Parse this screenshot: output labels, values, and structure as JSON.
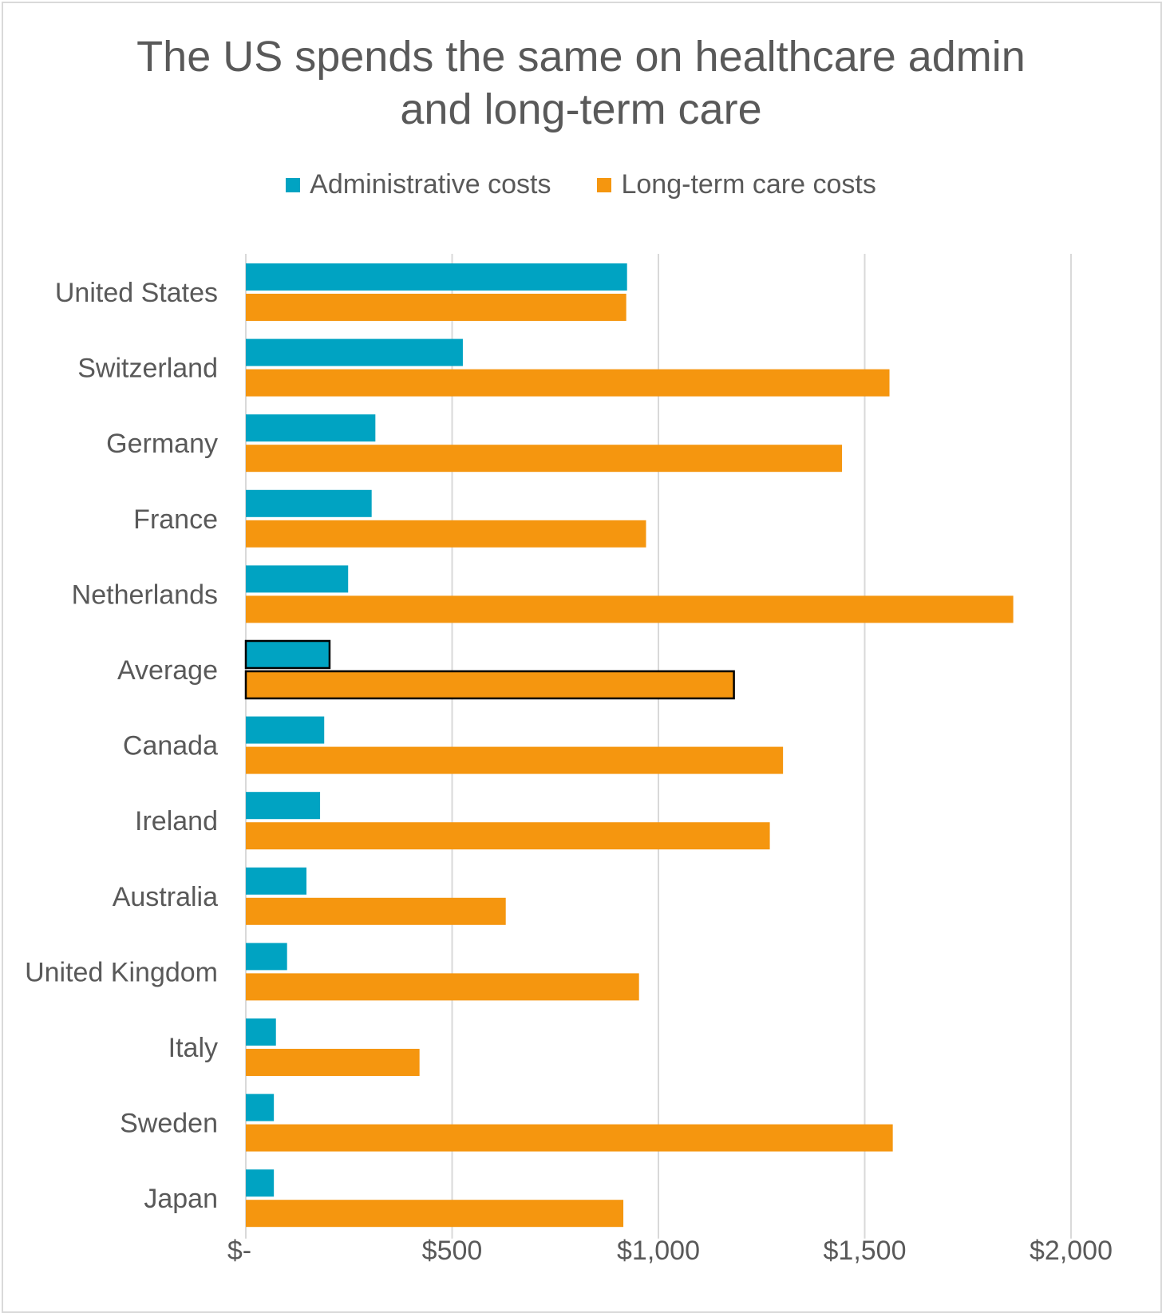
{
  "chart_data": {
    "type": "bar",
    "orientation": "horizontal",
    "title_lines": [
      "The US spends the same on healthcare admin",
      "and long-term care"
    ],
    "categories": [
      "United States",
      "Switzerland",
      "Germany",
      "France",
      "Netherlands",
      "Average",
      "Canada",
      "Ireland",
      "Australia",
      "United Kingdom",
      "Italy",
      "Sweden",
      "Japan"
    ],
    "series": [
      {
        "name": "Administrative costs",
        "color": "#00a3c2",
        "values": [
          924,
          526,
          314,
          305,
          248,
          203,
          190,
          180,
          147,
          100,
          73,
          68,
          68
        ]
      },
      {
        "name": "Long-term care costs",
        "color": "#f5960f",
        "values": [
          922,
          1560,
          1445,
          970,
          1860,
          1183,
          1302,
          1270,
          630,
          953,
          421,
          1568,
          915
        ]
      }
    ],
    "highlight_category": "Average",
    "xlim": [
      0,
      2000
    ],
    "x_ticks": [
      0,
      500,
      1000,
      1500,
      2000
    ],
    "x_tick_labels": [
      "$-",
      "$500",
      "$1,000",
      "$1,500",
      "$2,000"
    ],
    "grid": "vertical",
    "legend_position": "top"
  }
}
